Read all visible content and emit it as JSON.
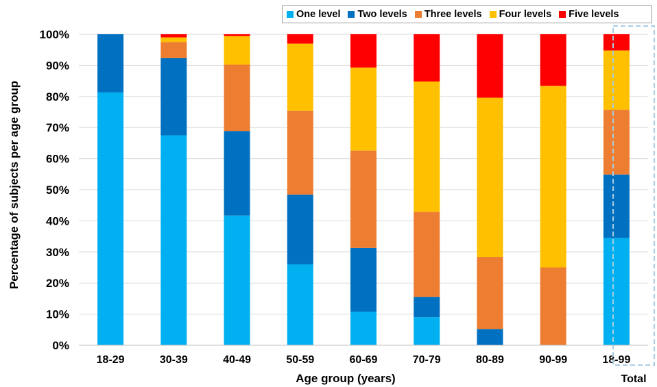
{
  "chart_data": {
    "type": "bar",
    "stacked": true,
    "title": "",
    "xlabel": "Age group (years)",
    "ylabel": "Percentage of subjects per age group",
    "ylim": [
      0,
      100
    ],
    "yticks": [
      "0%",
      "10%",
      "20%",
      "30%",
      "40%",
      "50%",
      "60%",
      "70%",
      "80%",
      "90%",
      "100%"
    ],
    "grid": true,
    "legend_position": "top-right",
    "categories": [
      "18-29",
      "30-39",
      "40-49",
      "50-59",
      "60-69",
      "70-79",
      "80-89",
      "90-99",
      "18-99"
    ],
    "total_label": "Total",
    "series": [
      {
        "name": "One level",
        "color": "#00B0F0",
        "values": [
          81.3,
          67.5,
          41.7,
          26.0,
          10.8,
          9.0,
          0.0,
          0.0,
          34.5
        ]
      },
      {
        "name": "Two levels",
        "color": "#0070C0",
        "values": [
          18.7,
          24.8,
          27.2,
          22.4,
          20.5,
          6.5,
          5.2,
          0.0,
          20.4
        ]
      },
      {
        "name": "Three levels",
        "color": "#ED7D31",
        "values": [
          0.0,
          5.2,
          21.3,
          27.0,
          31.3,
          27.4,
          23.2,
          25.0,
          20.8
        ]
      },
      {
        "name": "Four levels",
        "color": "#FFC000",
        "values": [
          0.0,
          1.5,
          9.2,
          21.6,
          26.7,
          41.9,
          51.2,
          58.4,
          19.1
        ]
      },
      {
        "name": "Five levels",
        "color": "#FF0000",
        "values": [
          0.0,
          1.0,
          0.6,
          3.0,
          10.7,
          15.2,
          20.4,
          16.6,
          5.2
        ]
      }
    ]
  }
}
